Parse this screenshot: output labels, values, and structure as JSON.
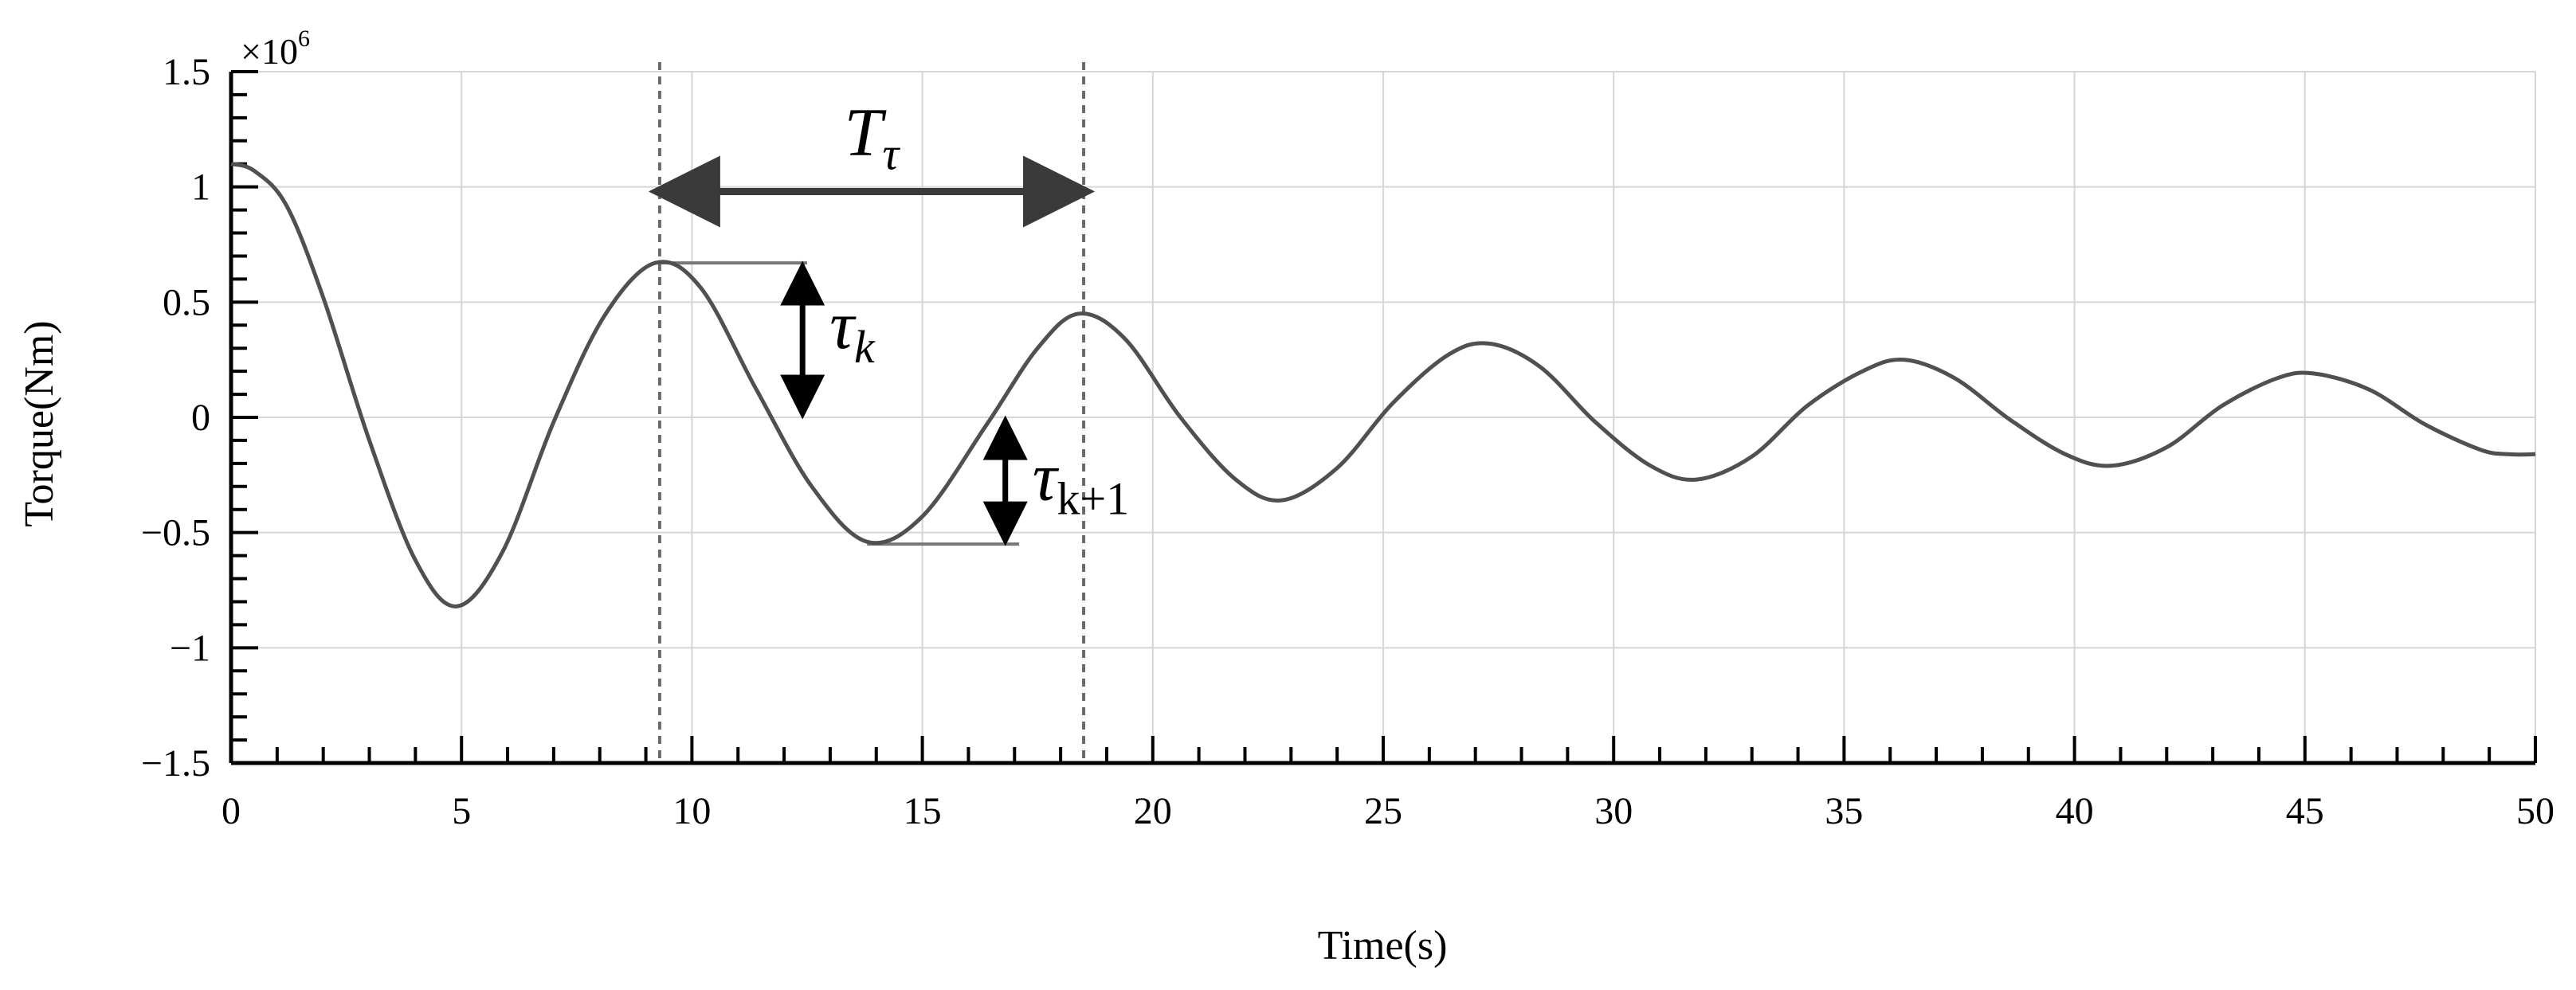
{
  "chart_data": {
    "type": "line",
    "title": "",
    "xlabel": "Time(s)",
    "ylabel": "Torque(Nm)",
    "y_multiplier": "×10",
    "y_multiplier_exp": "6",
    "xlim": [
      0,
      50
    ],
    "ylim": [
      -1.5,
      1.5
    ],
    "grid": true,
    "x_ticks": [
      0,
      5,
      10,
      15,
      20,
      25,
      30,
      35,
      40,
      45,
      50
    ],
    "x_tick_labels": [
      "0",
      "5",
      "10",
      "15",
      "20",
      "25",
      "30",
      "35",
      "40",
      "45",
      "50"
    ],
    "y_ticks": [
      -1.5,
      -1,
      -0.5,
      0,
      0.5,
      1,
      1.5
    ],
    "y_tick_labels": [
      "−1.5",
      "−1",
      "−0.5",
      "0",
      "0.5",
      "1",
      "1.5"
    ],
    "series": [
      {
        "color": "#505050",
        "x": [
          0,
          0.5,
          1.2,
          2.0,
          3.0,
          4.0,
          4.9,
          5.9,
          7.0,
          8.1,
          9.2,
          10.2,
          11.4,
          12.6,
          13.8,
          15.0,
          16.4,
          17.5,
          18.4,
          19.4,
          20.6,
          21.8,
          22.8,
          24.0,
          25.2,
          26.4,
          27.3,
          28.4,
          29.6,
          30.8,
          31.8,
          33.0,
          34.2,
          35.4,
          36.3,
          37.4,
          38.6,
          39.8,
          40.8,
          42.0,
          43.2,
          44.4,
          45.2,
          46.4,
          47.6,
          48.8,
          49.4,
          50.0
        ],
        "y": [
          1.1,
          1.07,
          0.92,
          0.52,
          -0.1,
          -0.62,
          -0.82,
          -0.58,
          -0.02,
          0.44,
          0.67,
          0.56,
          0.12,
          -0.3,
          -0.54,
          -0.43,
          -0.03,
          0.3,
          0.45,
          0.34,
          0.0,
          -0.27,
          -0.36,
          -0.22,
          0.06,
          0.27,
          0.32,
          0.22,
          -0.02,
          -0.21,
          -0.27,
          -0.17,
          0.05,
          0.2,
          0.25,
          0.17,
          -0.01,
          -0.16,
          -0.21,
          -0.13,
          0.05,
          0.17,
          0.19,
          0.12,
          -0.03,
          -0.14,
          -0.16,
          -0.16
        ]
      }
    ],
    "annotations": {
      "period_label_main": "T",
      "period_label_sub": "τ",
      "period_start": 9.3,
      "period_end": 18.5,
      "period_arrow_y": 0.98,
      "tau_k_main": "τ",
      "tau_k_sub": "k",
      "tau_k_x": 12.4,
      "tau_k_top": 0.67,
      "tau_k_bottom": 0.0,
      "tau_k_ref_x0": 9.3,
      "tau_k_ref_x1": 12.5,
      "tau_k1_main": "τ",
      "tau_k1_sub": "k+1",
      "tau_k1_x": 16.8,
      "tau_k1_top": 0.0,
      "tau_k1_bottom": -0.55,
      "tau_k1_ref_x0": 13.8,
      "tau_k1_ref_x1": 17.1
    }
  }
}
